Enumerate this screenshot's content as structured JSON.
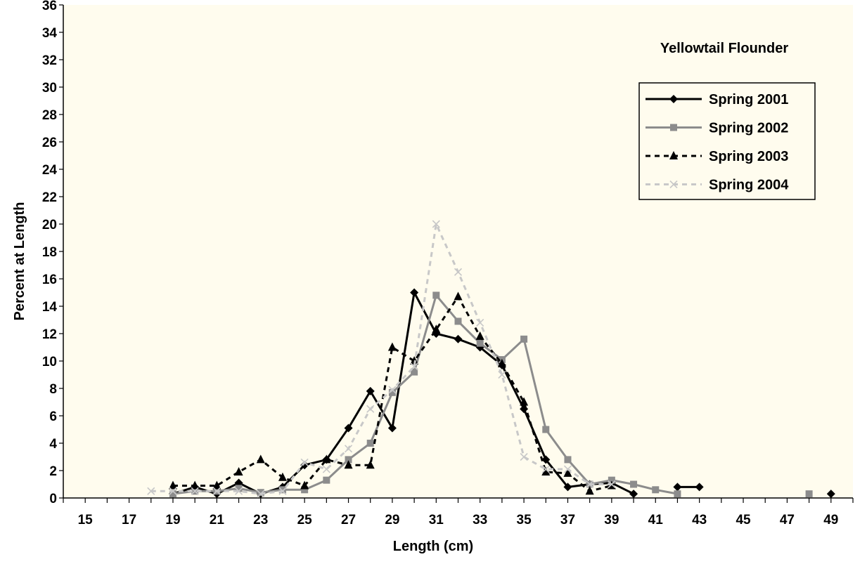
{
  "chart_data": {
    "type": "line",
    "title": "Yellowtail Flounder",
    "xlabel": "Length (cm)",
    "ylabel": "Percent at Length",
    "xlim": [
      14,
      50
    ],
    "ylim": [
      0,
      36
    ],
    "x_ticks": [
      15,
      17,
      19,
      21,
      23,
      25,
      27,
      29,
      31,
      33,
      35,
      37,
      39,
      41,
      43,
      45,
      47,
      49
    ],
    "y_ticks": [
      0,
      2,
      4,
      6,
      8,
      10,
      12,
      14,
      16,
      18,
      20,
      22,
      24,
      26,
      28,
      30,
      32,
      34,
      36
    ],
    "grid": false,
    "legend_position": "top-right",
    "colors": {
      "plot_background": "#fffcee",
      "page_background": "#ffffff",
      "axis": "#000000"
    },
    "series": [
      {
        "name": "Spring 2001",
        "color": "#000000",
        "dash": "solid",
        "marker": "diamond",
        "segments": [
          [
            [
              19,
              0.3
            ],
            [
              20,
              0.8
            ],
            [
              21,
              0.3
            ],
            [
              22,
              1.1
            ],
            [
              23,
              0.3
            ],
            [
              24,
              0.8
            ],
            [
              25,
              2.4
            ],
            [
              26,
              2.8
            ],
            [
              27,
              5.1
            ],
            [
              28,
              7.8
            ],
            [
              29,
              5.1
            ],
            [
              30,
              15.0
            ],
            [
              31,
              12.0
            ],
            [
              32,
              11.6
            ],
            [
              33,
              11.0
            ],
            [
              34,
              9.7
            ],
            [
              35,
              6.5
            ],
            [
              36,
              2.8
            ],
            [
              37,
              0.8
            ],
            [
              38,
              1.0
            ],
            [
              39,
              1.1
            ],
            [
              40,
              0.3
            ]
          ],
          [
            [
              42,
              0.8
            ],
            [
              43,
              0.8
            ]
          ],
          [
            [
              49,
              0.3
            ]
          ]
        ]
      },
      {
        "name": "Spring 2002",
        "color": "#8c8c8c",
        "dash": "solid",
        "marker": "square",
        "segments": [
          [
            [
              19,
              0.3
            ],
            [
              20,
              0.5
            ],
            [
              21,
              0.5
            ],
            [
              22,
              0.7
            ],
            [
              23,
              0.4
            ],
            [
              24,
              0.6
            ],
            [
              25,
              0.6
            ],
            [
              26,
              1.3
            ],
            [
              27,
              2.8
            ],
            [
              28,
              4.0
            ],
            [
              29,
              7.7
            ],
            [
              30,
              9.2
            ],
            [
              31,
              14.8
            ],
            [
              32,
              12.9
            ],
            [
              33,
              11.3
            ],
            [
              34,
              10.1
            ],
            [
              35,
              11.6
            ],
            [
              36,
              5.0
            ],
            [
              37,
              2.8
            ],
            [
              38,
              1.0
            ],
            [
              39,
              1.3
            ],
            [
              40,
              1.0
            ],
            [
              41,
              0.6
            ],
            [
              42,
              0.3
            ]
          ],
          [
            [
              48,
              0.3
            ]
          ]
        ]
      },
      {
        "name": "Spring 2003",
        "color": "#000000",
        "dash": "dashed",
        "marker": "triangle",
        "segments": [
          [
            [
              19,
              0.9
            ],
            [
              20,
              0.9
            ],
            [
              21,
              0.9
            ],
            [
              22,
              1.9
            ],
            [
              23,
              2.8
            ],
            [
              24,
              1.5
            ],
            [
              25,
              0.9
            ],
            [
              26,
              2.8
            ],
            [
              27,
              2.4
            ],
            [
              28,
              2.4
            ],
            [
              29,
              11.0
            ],
            [
              30,
              10.0
            ],
            [
              31,
              12.3
            ],
            [
              32,
              14.7
            ],
            [
              33,
              11.8
            ],
            [
              34,
              9.8
            ],
            [
              35,
              7.0
            ],
            [
              36,
              1.9
            ],
            [
              37,
              1.8
            ],
            [
              38,
              0.5
            ],
            [
              39,
              0.9
            ]
          ]
        ]
      },
      {
        "name": "Spring 2004",
        "color": "#c8c8c8",
        "dash": "dashed",
        "marker": "x",
        "segments": [
          [
            [
              18,
              0.5
            ],
            [
              19,
              0.5
            ],
            [
              20,
              0.5
            ],
            [
              21,
              0.5
            ],
            [
              22,
              0.5
            ],
            [
              23,
              0.3
            ],
            [
              24,
              0.5
            ],
            [
              25,
              2.6
            ],
            [
              26,
              2.1
            ],
            [
              27,
              3.6
            ],
            [
              28,
              6.5
            ],
            [
              29,
              7.9
            ],
            [
              30,
              9.6
            ],
            [
              31,
              20.0
            ],
            [
              32,
              16.5
            ],
            [
              33,
              12.8
            ],
            [
              34,
              9.0
            ],
            [
              35,
              3.0
            ],
            [
              36,
              2.1
            ],
            [
              37,
              2.1
            ],
            [
              38,
              1.0
            ],
            [
              39,
              1.0
            ]
          ]
        ]
      }
    ]
  }
}
